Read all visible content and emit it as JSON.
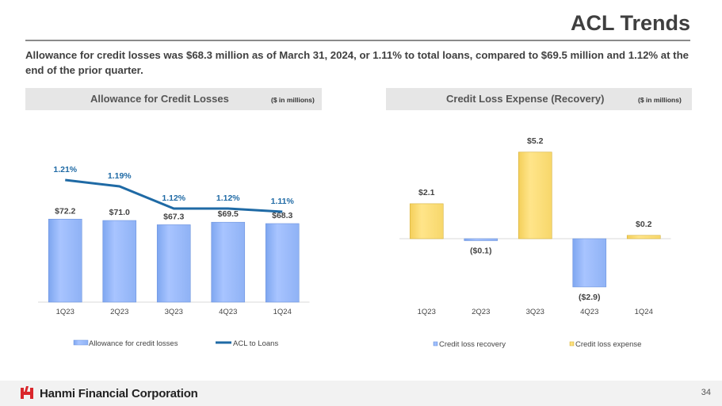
{
  "header": {
    "title": "ACL Trends",
    "subtitle": "Allowance for credit losses was $68.3 million as of March 31, 2024, or 1.11% to total loans, compared to $69.5 million and 1.12% at the end of the prior quarter."
  },
  "left_panel": {
    "title": "Allowance for Credit Losses",
    "unit": "($ in millions)"
  },
  "right_panel": {
    "title": "Credit Loss Expense (Recovery)",
    "unit": "($ in millions)"
  },
  "footer": {
    "company": "Hanmi Financial Corporation",
    "page_number": "34"
  },
  "colors": {
    "bar_blue": "#a8c4ff",
    "bar_yellow": "#ffe58a",
    "line_blue": "#1f6aa5",
    "rate_text": "#1f6aa5"
  },
  "chart_data": [
    {
      "type": "bar",
      "title": "Allowance for Credit Losses",
      "categories": [
        "1Q23",
        "2Q23",
        "3Q23",
        "4Q23",
        "1Q24"
      ],
      "series": [
        {
          "name": "Allowance for credit losses",
          "type": "bar",
          "values": [
            72.2,
            71.0,
            67.3,
            69.5,
            68.3
          ],
          "labels": [
            "$72.2",
            "$71.0",
            "$67.3",
            "$69.5",
            "$68.3"
          ]
        },
        {
          "name": "ACL to Loans",
          "type": "line",
          "values": [
            1.21,
            1.19,
            1.12,
            1.12,
            1.11
          ],
          "labels": [
            "1.21%",
            "1.19%",
            "1.12%",
            "1.12%",
            "1.11%"
          ]
        }
      ],
      "legend_position": "bottom"
    },
    {
      "type": "bar",
      "title": "Credit Loss Expense (Recovery)",
      "categories": [
        "1Q23",
        "2Q23",
        "3Q23",
        "4Q23",
        "1Q24"
      ],
      "values": [
        2.1,
        -0.1,
        5.2,
        -2.9,
        0.2
      ],
      "labels": [
        "$2.1",
        "($0.1)",
        "$5.2",
        "($2.9)",
        "$0.2"
      ],
      "legend": [
        "Credit loss recovery",
        "Credit loss expense"
      ],
      "legend_position": "bottom"
    }
  ]
}
